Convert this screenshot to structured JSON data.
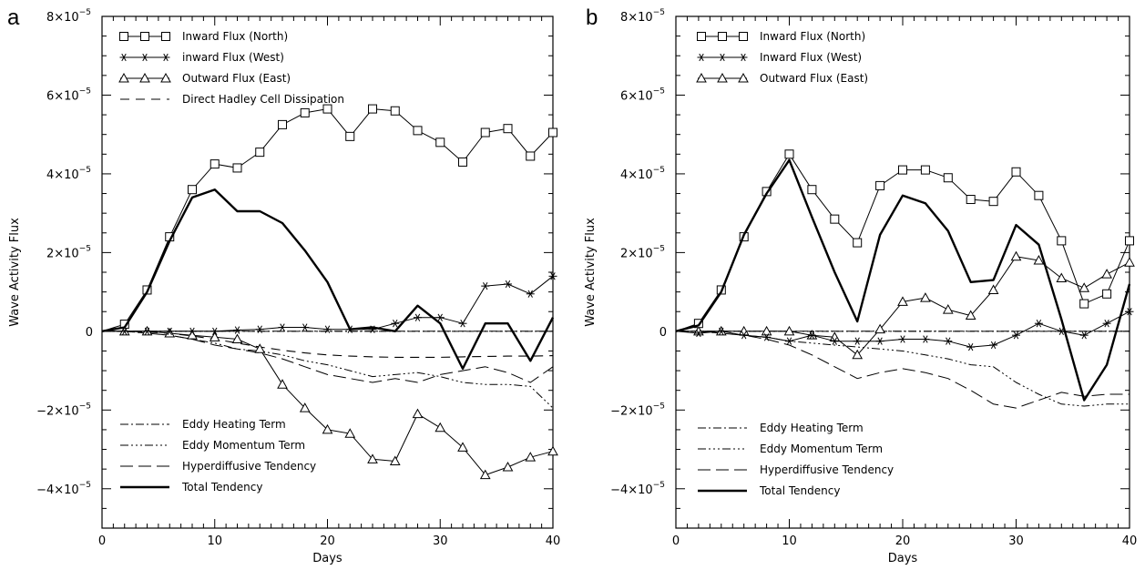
{
  "styles": {
    "inward_north": {
      "dash": "",
      "width": 1,
      "marker": "square",
      "color": "#000000"
    },
    "inward_west": {
      "dash": "",
      "width": 1,
      "marker": "star",
      "color": "#000000"
    },
    "outward_east": {
      "dash": "",
      "width": 1,
      "marker": "triangle",
      "color": "#000000"
    },
    "hadley": {
      "dash": "10,7",
      "width": 1.1,
      "marker": "none",
      "color": "#000000"
    },
    "eddy_heating": {
      "dash": "9,3,2,3",
      "width": 1,
      "marker": "none",
      "color": "#000000"
    },
    "eddy_momentum": {
      "dash": "9,3,2,3,2,3,2,3",
      "width": 1,
      "marker": "none",
      "color": "#000000"
    },
    "hyperdiffusive": {
      "dash": "14,6",
      "width": 1,
      "marker": "none",
      "color": "#000000"
    },
    "total": {
      "dash": "",
      "width": 2.4,
      "marker": "none",
      "color": "#000000"
    }
  },
  "chart_data": [
    {
      "type": "line",
      "panel_label": "a",
      "xlabel": "Days",
      "ylabel": "Wave Activity Flux",
      "xlim": [
        0,
        40
      ],
      "ylim": [
        -5e-05,
        8e-05
      ],
      "xticks": [
        0,
        10,
        20,
        30,
        40
      ],
      "xtick_labels": [
        "0",
        "10",
        "20",
        "30",
        "40"
      ],
      "yticks": [
        -4e-05,
        -2e-05,
        0,
        2e-05,
        4e-05,
        6e-05,
        8e-05
      ],
      "ytick_labels": [
        {
          "base": "−4×10",
          "exp": "−5"
        },
        {
          "base": "−2×10",
          "exp": "−5"
        },
        {
          "base": "0",
          "exp": ""
        },
        {
          "base": "2×10",
          "exp": "−5"
        },
        {
          "base": "4×10",
          "exp": "−5"
        },
        {
          "base": "6×10",
          "exp": "−5"
        },
        {
          "base": "8×10",
          "exp": "−5"
        }
      ],
      "zero_line": {
        "dash": "8,3,2,3"
      },
      "legend_top": [
        {
          "series": "inward_north",
          "label": "Inward Flux (North)"
        },
        {
          "series": "inward_west",
          "label": "inward Flux (West)"
        },
        {
          "series": "outward_east",
          "label": "Outward Flux (East)"
        },
        {
          "series": "hadley",
          "label": "Direct Hadley Cell Dissipation"
        }
      ],
      "legend_bottom": [
        {
          "series": "eddy_heating",
          "label": "Eddy Heating Term"
        },
        {
          "series": "eddy_momentum",
          "label": "Eddy Momentum Term"
        },
        {
          "series": "hyperdiffusive",
          "label": "Hyperdiffusive Tendency"
        },
        {
          "series": "total",
          "label": "Total Tendency"
        }
      ],
      "series": [
        {
          "key": "inward_north",
          "name": "Inward Flux (North)",
          "x": [
            0,
            2,
            4,
            6,
            8,
            10,
            12,
            14,
            16,
            18,
            20,
            22,
            24,
            26,
            28,
            30,
            32,
            34,
            36,
            38,
            40
          ],
          "y": [
            0.0,
            1.8e-06,
            1.05e-05,
            2.4e-05,
            3.6e-05,
            4.25e-05,
            4.15e-05,
            4.55e-05,
            5.25e-05,
            5.55e-05,
            5.65e-05,
            4.95e-05,
            5.65e-05,
            5.6e-05,
            5.1e-05,
            4.8e-05,
            4.3e-05,
            5.05e-05,
            5.15e-05,
            4.45e-05,
            5.05e-05
          ]
        },
        {
          "key": "inward_west",
          "name": "inward Flux (West)",
          "x": [
            0,
            2,
            4,
            6,
            8,
            10,
            12,
            14,
            16,
            18,
            20,
            22,
            24,
            26,
            28,
            30,
            32,
            34,
            36,
            38,
            40
          ],
          "y": [
            0.0,
            0.0,
            0.0,
            0.0,
            0.0,
            0.0,
            3e-07,
            5e-07,
            1e-06,
            1e-06,
            5e-07,
            5e-07,
            5e-07,
            2e-06,
            3.5e-06,
            3.5e-06,
            2e-06,
            1.15e-05,
            1.2e-05,
            9.5e-06,
            1.4e-05
          ]
        },
        {
          "key": "outward_east",
          "name": "Outward Flux (East)",
          "x": [
            0,
            2,
            4,
            6,
            8,
            10,
            12,
            14,
            16,
            18,
            20,
            22,
            24,
            26,
            28,
            30,
            32,
            34,
            36,
            38,
            40
          ],
          "y": [
            0.0,
            0.0,
            0.0,
            -5e-07,
            -1e-06,
            -1.5e-06,
            -2e-06,
            -4.5e-06,
            -1.35e-05,
            -1.95e-05,
            -2.5e-05,
            -2.6e-05,
            -3.25e-05,
            -3.3e-05,
            -2.1e-05,
            -2.45e-05,
            -2.95e-05,
            -3.65e-05,
            -3.45e-05,
            -3.2e-05,
            -3.05e-05
          ]
        },
        {
          "key": "hadley",
          "name": "Direct Hadley Cell Dissipation",
          "x": [
            0,
            2,
            4,
            6,
            8,
            10,
            12,
            14,
            16,
            18,
            20,
            22,
            24,
            26,
            28,
            30,
            32,
            34,
            36,
            38,
            40
          ],
          "y": [
            0.0,
            0.0,
            -2e-07,
            -5e-07,
            -1.2e-06,
            -2e-06,
            -3e-06,
            -4e-06,
            -4.8e-06,
            -5.5e-06,
            -6e-06,
            -6.3e-06,
            -6.5e-06,
            -6.6e-06,
            -6.6e-06,
            -6.6e-06,
            -6.5e-06,
            -6.4e-06,
            -6.3e-06,
            -6.3e-06,
            -6.2e-06
          ]
        },
        {
          "key": "eddy_heating",
          "name": "Eddy Heating Term",
          "x": [
            0,
            2,
            4,
            6,
            8,
            10,
            12,
            14,
            16,
            18,
            20,
            22,
            24,
            26,
            28,
            30,
            32,
            34,
            36,
            38,
            40
          ],
          "y": [
            0.0,
            0.0,
            0.0,
            0.0,
            0.0,
            0.0,
            0.0,
            0.0,
            0.0,
            0.0,
            0.0,
            0.0,
            0.0,
            0.0,
            0.0,
            0.0,
            0.0,
            0.0,
            0.0,
            0.0,
            0.0
          ]
        },
        {
          "key": "eddy_momentum",
          "name": "Eddy Momentum Term",
          "x": [
            0,
            2,
            4,
            6,
            8,
            10,
            12,
            14,
            16,
            18,
            20,
            22,
            24,
            26,
            28,
            30,
            32,
            34,
            36,
            38,
            40
          ],
          "y": [
            0.0,
            0.0,
            -5e-07,
            -1e-06,
            -2e-06,
            -3e-06,
            -4.5e-06,
            -5e-06,
            -6e-06,
            -7.5e-06,
            -8.5e-06,
            -1e-05,
            -1.15e-05,
            -1.1e-05,
            -1.05e-05,
            -1.15e-05,
            -1.3e-05,
            -1.35e-05,
            -1.35e-05,
            -1.4e-05,
            -1.95e-05
          ]
        },
        {
          "key": "hyperdiffusive",
          "name": "Hyperdiffusive Tendency",
          "x": [
            0,
            2,
            4,
            6,
            8,
            10,
            12,
            14,
            16,
            18,
            20,
            22,
            24,
            26,
            28,
            30,
            32,
            34,
            36,
            38,
            40
          ],
          "y": [
            0.0,
            0.0,
            -5e-07,
            -1e-06,
            -2e-06,
            -3.5e-06,
            -4.5e-06,
            -5.5e-06,
            -7e-06,
            -9e-06,
            -1.1e-05,
            -1.2e-05,
            -1.3e-05,
            -1.2e-05,
            -1.3e-05,
            -1.1e-05,
            -1e-05,
            -9e-06,
            -1.05e-05,
            -1.3e-05,
            -9e-06
          ]
        },
        {
          "key": "total",
          "name": "Total Tendency",
          "x": [
            0,
            2,
            4,
            6,
            8,
            10,
            12,
            14,
            16,
            18,
            20,
            22,
            24,
            26,
            28,
            30,
            32,
            34,
            36,
            38,
            40
          ],
          "y": [
            0.0,
            1e-06,
            1e-05,
            2.3e-05,
            3.4e-05,
            3.6e-05,
            3.05e-05,
            3.05e-05,
            2.75e-05,
            2.05e-05,
            1.25e-05,
            5e-07,
            1e-06,
            0.0,
            6.5e-06,
            2e-06,
            -9.5e-06,
            2e-06,
            2e-06,
            -7.5e-06,
            3.5e-06
          ]
        }
      ]
    },
    {
      "type": "line",
      "panel_label": "b",
      "xlabel": "Days",
      "ylabel": "Wave Activity Flux",
      "xlim": [
        0,
        40
      ],
      "ylim": [
        -5e-05,
        8e-05
      ],
      "xticks": [
        0,
        10,
        20,
        30,
        40
      ],
      "xtick_labels": [
        "0",
        "10",
        "20",
        "30",
        "40"
      ],
      "yticks": [
        -4e-05,
        -2e-05,
        0,
        2e-05,
        4e-05,
        6e-05,
        8e-05
      ],
      "ytick_labels": [
        {
          "base": "−4×10",
          "exp": "−5"
        },
        {
          "base": "−2×10",
          "exp": "−5"
        },
        {
          "base": "0",
          "exp": ""
        },
        {
          "base": "2×10",
          "exp": "−5"
        },
        {
          "base": "4×10",
          "exp": "−5"
        },
        {
          "base": "6×10",
          "exp": "−5"
        },
        {
          "base": "8×10",
          "exp": "−5"
        }
      ],
      "zero_line": {
        "dash": "8,3,2,3"
      },
      "legend_top": [
        {
          "series": "inward_north",
          "label": "Inward Flux (North)"
        },
        {
          "series": "inward_west",
          "label": "Inward Flux (West)"
        },
        {
          "series": "outward_east",
          "label": "Outward Flux (East)"
        }
      ],
      "legend_bottom": [
        {
          "series": "eddy_heating",
          "label": "Eddy Heating Term"
        },
        {
          "series": "eddy_momentum",
          "label": "Eddy Momentum Term"
        },
        {
          "series": "hyperdiffusive",
          "label": "Hyperdiffusive Tendency"
        },
        {
          "series": "total",
          "label": "Total Tendency"
        }
      ],
      "series": [
        {
          "key": "inward_north",
          "name": "Inward Flux (North)",
          "x": [
            0,
            2,
            4,
            6,
            8,
            10,
            12,
            14,
            16,
            18,
            20,
            22,
            24,
            26,
            28,
            30,
            32,
            34,
            36,
            38,
            40
          ],
          "y": [
            0.0,
            2e-06,
            1.05e-05,
            2.4e-05,
            3.55e-05,
            4.5e-05,
            3.6e-05,
            2.85e-05,
            2.25e-05,
            3.7e-05,
            4.1e-05,
            4.1e-05,
            3.9e-05,
            3.35e-05,
            3.3e-05,
            4.05e-05,
            3.45e-05,
            2.3e-05,
            7e-06,
            9.5e-06,
            2.3e-05
          ]
        },
        {
          "key": "inward_west",
          "name": "Inward Flux (West)",
          "x": [
            0,
            2,
            4,
            6,
            8,
            10,
            12,
            14,
            16,
            18,
            20,
            22,
            24,
            26,
            28,
            30,
            32,
            34,
            36,
            38,
            40
          ],
          "y": [
            0.0,
            -5e-07,
            0.0,
            -1e-06,
            -1.5e-06,
            -2.5e-06,
            -1e-06,
            -2.5e-06,
            -2.5e-06,
            -2.5e-06,
            -2e-06,
            -2e-06,
            -2.5e-06,
            -4e-06,
            -3.5e-06,
            -1e-06,
            2e-06,
            0.0,
            -1e-06,
            2e-06,
            5e-06
          ]
        },
        {
          "key": "outward_east",
          "name": "Outward Flux (East)",
          "x": [
            0,
            2,
            4,
            6,
            8,
            10,
            12,
            14,
            16,
            18,
            20,
            22,
            24,
            26,
            28,
            30,
            32,
            34,
            36,
            38,
            40
          ],
          "y": [
            0.0,
            0.0,
            0.0,
            0.0,
            0.0,
            0.0,
            -1e-06,
            -1.5e-06,
            -6e-06,
            5e-07,
            7.5e-06,
            8.5e-06,
            5.5e-06,
            4e-06,
            1.05e-05,
            1.9e-05,
            1.8e-05,
            1.35e-05,
            1.1e-05,
            1.45e-05,
            1.75e-05
          ]
        },
        {
          "key": "eddy_heating",
          "name": "Eddy Heating Term",
          "x": [
            0,
            2,
            4,
            6,
            8,
            10,
            12,
            14,
            16,
            18,
            20,
            22,
            24,
            26,
            28,
            30,
            32,
            34,
            36,
            38,
            40
          ],
          "y": [
            0.0,
            0.0,
            0.0,
            0.0,
            0.0,
            0.0,
            0.0,
            0.0,
            0.0,
            0.0,
            0.0,
            0.0,
            0.0,
            0.0,
            0.0,
            0.0,
            0.0,
            0.0,
            0.0,
            0.0,
            0.0
          ]
        },
        {
          "key": "eddy_momentum",
          "name": "Eddy Momentum Term",
          "x": [
            0,
            2,
            4,
            6,
            8,
            10,
            12,
            14,
            16,
            18,
            20,
            22,
            24,
            26,
            28,
            30,
            32,
            34,
            36,
            38,
            40
          ],
          "y": [
            0.0,
            0.0,
            -5e-07,
            -1e-06,
            -1.5e-06,
            -2.5e-06,
            -3e-06,
            -3.5e-06,
            -4e-06,
            -4.5e-06,
            -5e-06,
            -6e-06,
            -7e-06,
            -8.5e-06,
            -9e-06,
            -1.3e-05,
            -1.6e-05,
            -1.85e-05,
            -1.9e-05,
            -1.85e-05,
            -1.85e-05
          ]
        },
        {
          "key": "hyperdiffusive",
          "name": "Hyperdiffusive Tendency",
          "x": [
            0,
            2,
            4,
            6,
            8,
            10,
            12,
            14,
            16,
            18,
            20,
            22,
            24,
            26,
            28,
            30,
            32,
            34,
            36,
            38,
            40
          ],
          "y": [
            0.0,
            0.0,
            -5e-07,
            -1e-06,
            -2e-06,
            -3.5e-06,
            -6e-06,
            -9e-06,
            -1.2e-05,
            -1.05e-05,
            -9.5e-06,
            -1.05e-05,
            -1.2e-05,
            -1.5e-05,
            -1.85e-05,
            -1.95e-05,
            -1.75e-05,
            -1.55e-05,
            -1.65e-05,
            -1.6e-05,
            -1.6e-05
          ]
        },
        {
          "key": "total",
          "name": "Total Tendency",
          "x": [
            0,
            2,
            4,
            6,
            8,
            10,
            12,
            14,
            16,
            18,
            20,
            22,
            24,
            26,
            28,
            30,
            32,
            34,
            36,
            38,
            40
          ],
          "y": [
            0.0,
            1.5e-06,
            1e-05,
            2.45e-05,
            3.5e-05,
            4.35e-05,
            2.9e-05,
            1.5e-05,
            2.5e-06,
            2.45e-05,
            3.45e-05,
            3.25e-05,
            2.55e-05,
            1.25e-05,
            1.3e-05,
            2.7e-05,
            2.2e-05,
            3e-06,
            -1.75e-05,
            -8.5e-06,
            1.2e-05
          ]
        }
      ]
    }
  ]
}
